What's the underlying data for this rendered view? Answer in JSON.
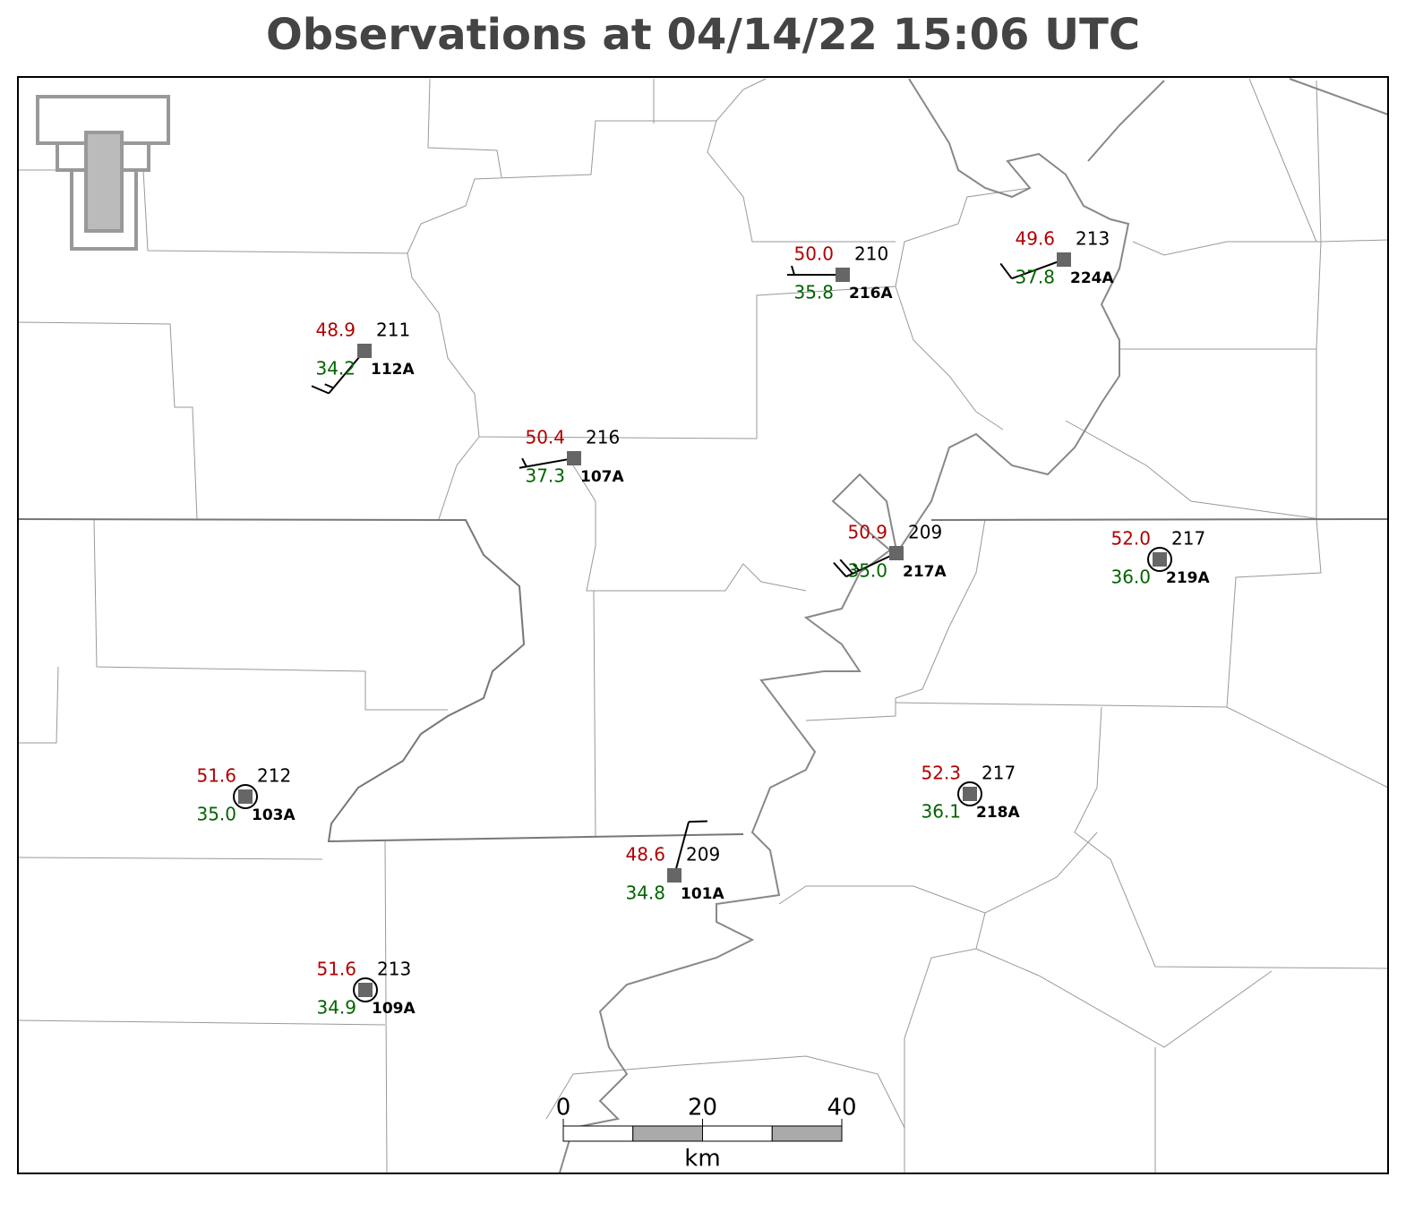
{
  "title": "Observations at 04/14/22 15:06 UTC",
  "stations": [
    {
      "id": "112A",
      "temperature": "48.9",
      "dewpoint": "34.2",
      "pressure": 211,
      "wind_direction": 220,
      "wind_speed": 15
    },
    {
      "id": "216A",
      "temperature": "50.0",
      "dewpoint": "35.8",
      "pressure": 210,
      "wind_direction": 270,
      "wind_speed": 5
    },
    {
      "id": "224A",
      "temperature": "49.6",
      "dewpoint": "37.8",
      "pressure": 213,
      "wind_direction": 250,
      "wind_speed": 10
    },
    {
      "id": "107A",
      "temperature": "50.4",
      "dewpoint": "37.3",
      "pressure": 216,
      "wind_direction": 260,
      "wind_speed": 5
    },
    {
      "id": "217A",
      "temperature": "50.9",
      "dewpoint": "35.0",
      "pressure": 209,
      "wind_direction": 245,
      "wind_speed": 25
    },
    {
      "id": "219A",
      "temperature": "52.0",
      "dewpoint": "36.0",
      "pressure": 217,
      "wind_direction": 0,
      "wind_speed": 0
    },
    {
      "id": "103A",
      "temperature": "51.6",
      "dewpoint": "35.0",
      "pressure": 212,
      "wind_direction": 0,
      "wind_speed": 0
    },
    {
      "id": "218A",
      "temperature": "52.3",
      "dewpoint": "36.1",
      "pressure": 217,
      "wind_direction": 0,
      "wind_speed": 0
    },
    {
      "id": "101A",
      "temperature": "48.6",
      "dewpoint": "34.8",
      "pressure": 209,
      "wind_direction": 15,
      "wind_speed": 10
    },
    {
      "id": "109A",
      "temperature": "51.6",
      "dewpoint": "34.9",
      "pressure": 213,
      "wind_direction": 0,
      "wind_speed": 0
    }
  ],
  "scale_bar": {
    "ticks": [
      0,
      20,
      40
    ],
    "unit": "km"
  }
}
